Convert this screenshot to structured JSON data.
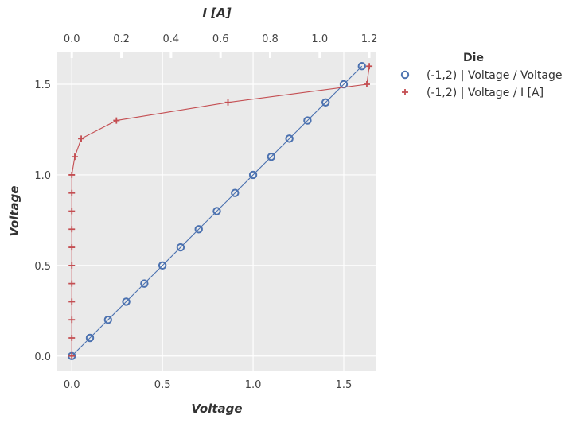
{
  "chart_data": {
    "type": "line",
    "title": "",
    "xlabel": "Voltage",
    "x2label": "I [A]",
    "ylabel": "Voltage",
    "xlim": [
      -0.08,
      1.68
    ],
    "x2lim": [
      -0.0585,
      1.2286
    ],
    "ylim": [
      -0.08,
      1.68
    ],
    "x_ticks": [
      0.0,
      0.5,
      1.0,
      1.5
    ],
    "x_tick_labels": [
      "0.0",
      "0.5",
      "1.0",
      "1.5"
    ],
    "x2_ticks": [
      0.0,
      0.2,
      0.4,
      0.6,
      0.8,
      1.0,
      1.2
    ],
    "x2_tick_labels": [
      "0.0",
      "0.2",
      "0.4",
      "0.6",
      "0.8",
      "1.0",
      "1.2"
    ],
    "y_ticks": [
      0.0,
      0.5,
      1.0,
      1.5
    ],
    "y_tick_labels": [
      "0.0",
      "0.5",
      "1.0",
      "1.5"
    ],
    "grid": true,
    "legend": {
      "title": "Die",
      "placement": "outside-right-top",
      "entries": [
        "(-1,2) | Voltage / Voltage",
        "(-1,2) | Voltage / I [A]"
      ]
    },
    "series": [
      {
        "name": "(-1,2) | Voltage / Voltage",
        "axis": "bottom",
        "marker": "circle",
        "color": "#4c72b0",
        "x": [
          0.0,
          0.1,
          0.2,
          0.3,
          0.4,
          0.5,
          0.6,
          0.7,
          0.8,
          0.9,
          1.0,
          1.1,
          1.2,
          1.3,
          1.4,
          1.5,
          1.6
        ],
        "y": [
          0.0,
          0.1,
          0.2,
          0.3,
          0.4,
          0.5,
          0.6,
          0.7,
          0.8,
          0.9,
          1.0,
          1.1,
          1.2,
          1.3,
          1.4,
          1.5,
          1.6
        ]
      },
      {
        "name": "(-1,2) | Voltage / I [A]",
        "axis": "top",
        "marker": "plus",
        "color": "#c44e52",
        "x": [
          0.0,
          0.0,
          0.0,
          0.0,
          0.0,
          0.0,
          0.0,
          0.0,
          0.0,
          0.0,
          0.0,
          0.012,
          0.038,
          0.18,
          0.63,
          1.19,
          1.2
        ],
        "y": [
          0.0,
          0.1,
          0.2,
          0.3,
          0.4,
          0.5,
          0.6,
          0.7,
          0.8,
          0.9,
          1.0,
          1.1,
          1.2,
          1.3,
          1.4,
          1.5,
          1.6
        ]
      }
    ]
  }
}
